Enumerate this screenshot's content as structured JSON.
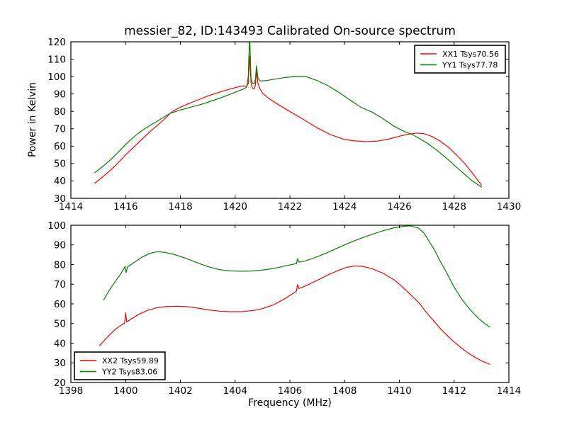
{
  "figure_title": "messier_82, ID:143493 Calibrated On-source spectrum",
  "colors": {
    "xx": "#ff0000",
    "yy": "#008000",
    "axes": "#000000",
    "background": "#ffffff"
  },
  "chart_data": [
    {
      "id": "top-spectrum",
      "type": "line",
      "title": "messier_82, ID:143493 Calibrated On-source spectrum",
      "xlabel": "",
      "ylabel": "Power in Kelvin",
      "xlim": [
        1414,
        1430
      ],
      "ylim": [
        30,
        120
      ],
      "xticks": [
        1414,
        1416,
        1418,
        1420,
        1422,
        1424,
        1426,
        1428,
        1430
      ],
      "yticks": [
        30,
        40,
        50,
        60,
        70,
        80,
        90,
        100,
        110,
        120
      ],
      "grid": false,
      "legend_position": "upper-right",
      "series": [
        {
          "name": "XX1 Tsys70.56",
          "color": "#ff0000",
          "points": [
            [
              1414.88,
              38.8
            ],
            [
              1415.1,
              41.5
            ],
            [
              1415.4,
              45.5
            ],
            [
              1415.7,
              50.0
            ],
            [
              1416.0,
              55.0
            ],
            [
              1416.3,
              59.5
            ],
            [
              1416.6,
              64.0
            ],
            [
              1416.9,
              68.5
            ],
            [
              1417.2,
              72.5
            ],
            [
              1417.45,
              76.0
            ],
            [
              1417.62,
              78.8
            ],
            [
              1417.8,
              80.8
            ],
            [
              1418.0,
              82.3
            ],
            [
              1418.3,
              84.5
            ],
            [
              1418.6,
              86.3
            ],
            [
              1419.0,
              88.8
            ],
            [
              1419.4,
              90.9
            ],
            [
              1419.8,
              92.8
            ],
            [
              1420.1,
              94.0
            ],
            [
              1420.3,
              94.6
            ],
            [
              1420.42,
              94.3
            ],
            [
              1420.48,
              96.0
            ],
            [
              1420.53,
              112.0
            ],
            [
              1420.58,
              96.5
            ],
            [
              1420.63,
              93.5
            ],
            [
              1420.7,
              92.8
            ],
            [
              1420.74,
              95.0
            ],
            [
              1420.78,
              103.5
            ],
            [
              1420.83,
              96.5
            ],
            [
              1420.9,
              93.2
            ],
            [
              1421.0,
              90.5
            ],
            [
              1421.2,
              87.8
            ],
            [
              1421.5,
              84.6
            ],
            [
              1421.8,
              81.8
            ],
            [
              1422.1,
              79.0
            ],
            [
              1422.5,
              75.3
            ],
            [
              1423.0,
              70.5
            ],
            [
              1423.5,
              66.5
            ],
            [
              1424.0,
              63.8
            ],
            [
              1424.4,
              63.0
            ],
            [
              1424.8,
              62.6
            ],
            [
              1425.2,
              62.9
            ],
            [
              1425.6,
              64.0
            ],
            [
              1426.0,
              65.7
            ],
            [
              1426.3,
              66.8
            ],
            [
              1426.6,
              67.5
            ],
            [
              1426.9,
              67.2
            ],
            [
              1427.2,
              65.5
            ],
            [
              1427.5,
              62.8
            ],
            [
              1427.8,
              59.3
            ],
            [
              1428.1,
              54.8
            ],
            [
              1428.4,
              49.8
            ],
            [
              1428.7,
              43.8
            ],
            [
              1429.0,
              37.6
            ]
          ]
        },
        {
          "name": "YY1 Tsys77.78",
          "color": "#008000",
          "points": [
            [
              1414.88,
              44.8
            ],
            [
              1415.1,
              47.5
            ],
            [
              1415.4,
              51.5
            ],
            [
              1415.7,
              56.0
            ],
            [
              1416.0,
              61.0
            ],
            [
              1416.3,
              65.3
            ],
            [
              1416.6,
              69.0
            ],
            [
              1416.9,
              72.0
            ],
            [
              1417.2,
              74.8
            ],
            [
              1417.62,
              78.8
            ],
            [
              1418.0,
              80.8
            ],
            [
              1418.4,
              82.5
            ],
            [
              1418.8,
              84.2
            ],
            [
              1419.2,
              86.3
            ],
            [
              1419.6,
              88.5
            ],
            [
              1420.0,
              91.0
            ],
            [
              1420.3,
              92.8
            ],
            [
              1420.42,
              94.0
            ],
            [
              1420.48,
              100.0
            ],
            [
              1420.53,
              124.0
            ],
            [
              1420.58,
              99.0
            ],
            [
              1420.63,
              96.3
            ],
            [
              1420.7,
              95.8
            ],
            [
              1420.74,
              98.5
            ],
            [
              1420.78,
              106.2
            ],
            [
              1420.84,
              98.8
            ],
            [
              1420.92,
              97.5
            ],
            [
              1421.1,
              97.6
            ],
            [
              1421.4,
              98.4
            ],
            [
              1421.8,
              99.4
            ],
            [
              1422.2,
              100.1
            ],
            [
              1422.6,
              99.9
            ],
            [
              1423.0,
              97.7
            ],
            [
              1423.4,
              94.7
            ],
            [
              1423.8,
              90.8
            ],
            [
              1424.2,
              86.5
            ],
            [
              1424.6,
              82.3
            ],
            [
              1425.0,
              79.6
            ],
            [
              1425.4,
              75.8
            ],
            [
              1425.8,
              71.5
            ],
            [
              1426.2,
              68.3
            ],
            [
              1426.5,
              66.5
            ],
            [
              1427.0,
              61.9
            ],
            [
              1427.4,
              57.3
            ],
            [
              1427.8,
              52.0
            ],
            [
              1428.2,
              46.3
            ],
            [
              1428.6,
              40.8
            ],
            [
              1429.0,
              36.4
            ]
          ]
        }
      ]
    },
    {
      "id": "bottom-spectrum",
      "type": "line",
      "title": "",
      "xlabel": "Frequency (MHz)",
      "ylabel": "",
      "xlim": [
        1398,
        1414
      ],
      "ylim": [
        20,
        100
      ],
      "xticks": [
        1398,
        1400,
        1402,
        1404,
        1406,
        1408,
        1410,
        1412,
        1414
      ],
      "yticks": [
        20,
        30,
        40,
        50,
        60,
        70,
        80,
        90,
        100
      ],
      "grid": false,
      "legend_position": "lower-left",
      "series": [
        {
          "name": "XX2 Tsys59.89",
          "color": "#ff0000",
          "points": [
            [
              1399.05,
              38.8
            ],
            [
              1399.25,
              41.8
            ],
            [
              1399.45,
              44.8
            ],
            [
              1399.65,
              47.3
            ],
            [
              1399.85,
              49.3
            ],
            [
              1399.96,
              50.2
            ],
            [
              1400.0,
              55.4
            ],
            [
              1400.04,
              50.8
            ],
            [
              1400.2,
              52.3
            ],
            [
              1400.5,
              54.8
            ],
            [
              1400.8,
              56.7
            ],
            [
              1401.1,
              57.9
            ],
            [
              1401.5,
              58.7
            ],
            [
              1401.9,
              58.8
            ],
            [
              1402.3,
              58.5
            ],
            [
              1402.7,
              57.7
            ],
            [
              1403.1,
              56.8
            ],
            [
              1403.5,
              56.2
            ],
            [
              1403.9,
              56.0
            ],
            [
              1404.3,
              56.1
            ],
            [
              1404.7,
              56.7
            ],
            [
              1405.0,
              57.6
            ],
            [
              1405.4,
              59.5
            ],
            [
              1405.8,
              62.5
            ],
            [
              1406.1,
              65.2
            ],
            [
              1406.24,
              66.5
            ],
            [
              1406.28,
              69.8
            ],
            [
              1406.33,
              67.8
            ],
            [
              1406.6,
              69.3
            ],
            [
              1407.0,
              72.0
            ],
            [
              1407.4,
              74.8
            ],
            [
              1407.8,
              77.2
            ],
            [
              1408.1,
              78.7
            ],
            [
              1408.4,
              79.3
            ],
            [
              1408.7,
              79.0
            ],
            [
              1409.0,
              77.9
            ],
            [
              1409.4,
              75.6
            ],
            [
              1409.8,
              72.3
            ],
            [
              1410.1,
              68.8
            ],
            [
              1410.4,
              64.8
            ],
            [
              1410.7,
              60.8
            ],
            [
              1411.0,
              55.4
            ],
            [
              1411.3,
              50.6
            ],
            [
              1411.6,
              45.9
            ],
            [
              1411.9,
              41.9
            ],
            [
              1412.2,
              38.3
            ],
            [
              1412.5,
              35.1
            ],
            [
              1412.8,
              32.5
            ],
            [
              1413.05,
              30.7
            ],
            [
              1413.3,
              29.3
            ]
          ]
        },
        {
          "name": "YY2 Tsys83.06",
          "color": "#008000",
          "points": [
            [
              1399.2,
              62.0
            ],
            [
              1399.4,
              66.8
            ],
            [
              1399.6,
              71.0
            ],
            [
              1399.8,
              74.8
            ],
            [
              1399.94,
              78.0
            ],
            [
              1399.98,
              79.1
            ],
            [
              1400.02,
              75.9
            ],
            [
              1400.07,
              78.8
            ],
            [
              1400.3,
              81.0
            ],
            [
              1400.6,
              83.8
            ],
            [
              1400.9,
              85.8
            ],
            [
              1401.15,
              86.5
            ],
            [
              1401.45,
              86.2
            ],
            [
              1401.8,
              85.0
            ],
            [
              1402.2,
              83.2
            ],
            [
              1402.6,
              81.0
            ],
            [
              1403.0,
              79.0
            ],
            [
              1403.4,
              77.5
            ],
            [
              1403.8,
              76.8
            ],
            [
              1404.2,
              76.6
            ],
            [
              1404.6,
              76.7
            ],
            [
              1405.0,
              77.2
            ],
            [
              1405.4,
              78.0
            ],
            [
              1405.8,
              79.2
            ],
            [
              1406.1,
              80.1
            ],
            [
              1406.24,
              80.5
            ],
            [
              1406.28,
              83.0
            ],
            [
              1406.33,
              81.2
            ],
            [
              1406.6,
              82.0
            ],
            [
              1407.0,
              84.0
            ],
            [
              1407.4,
              86.3
            ],
            [
              1407.8,
              88.8
            ],
            [
              1408.2,
              91.2
            ],
            [
              1408.6,
              93.4
            ],
            [
              1409.0,
              95.4
            ],
            [
              1409.4,
              97.2
            ],
            [
              1409.8,
              98.7
            ],
            [
              1410.1,
              99.4
            ],
            [
              1410.4,
              99.7
            ],
            [
              1410.7,
              98.5
            ],
            [
              1410.9,
              96.0
            ],
            [
              1411.1,
              91.5
            ],
            [
              1411.3,
              87.0
            ],
            [
              1411.5,
              81.5
            ],
            [
              1411.7,
              76.5
            ],
            [
              1412.0,
              68.5
            ],
            [
              1412.3,
              62.0
            ],
            [
              1412.6,
              56.8
            ],
            [
              1412.9,
              52.5
            ],
            [
              1413.1,
              50.2
            ],
            [
              1413.3,
              48.2
            ]
          ]
        }
      ]
    }
  ]
}
